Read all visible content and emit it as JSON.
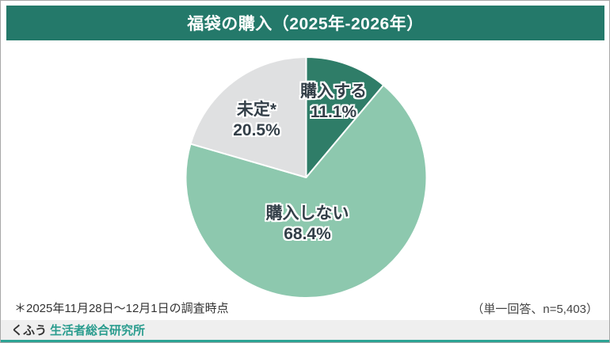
{
  "header": {
    "title": "福袋の購入（2025年-2026年）",
    "bg_color": "#24796a",
    "text_color": "#ffffff"
  },
  "chart_data": {
    "type": "pie",
    "title": "福袋の購入（2025年-2026年）",
    "direction": "clockwise",
    "start_angle_deg": 0,
    "slice_border_color": "#ffffff",
    "label_text_color": "#333f48",
    "slices": [
      {
        "label": "購入する",
        "value": 11.1,
        "display": "11.1%",
        "color": "#2f7d68"
      },
      {
        "label": "購入しない",
        "value": 68.4,
        "display": "68.4%",
        "color": "#8dc8ae"
      },
      {
        "label": "未定*",
        "value": 20.5,
        "display": "20.5%",
        "color": "#dfe0e1"
      }
    ]
  },
  "notes": {
    "footnote": "＊2025年11月28日～12月1日の調査時点",
    "sample": "（単一回答、n=5,403）"
  },
  "footer": {
    "brand": "くふう",
    "brand_suffix": "生活者総合研究所",
    "accent_color": "#2ba394"
  }
}
